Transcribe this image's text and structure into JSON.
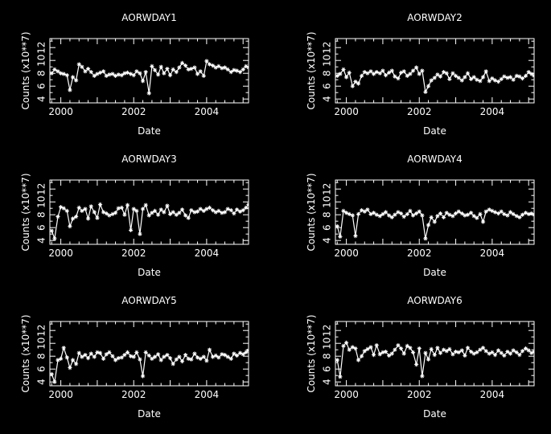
{
  "chart_data": [
    {
      "type": "line",
      "title": "AORWDAY1",
      "xlabel": "Date",
      "ylabel": "Counts (x10**7)",
      "xlim": [
        1999.7,
        2005.15
      ],
      "ylim": [
        3.4,
        13.4
      ],
      "xticks": [
        "2000",
        "2002",
        "2004"
      ],
      "yticks": [
        "4",
        "6",
        "8",
        "10",
        "12"
      ],
      "series": [
        {
          "x": [
            1999.75,
            1999.83,
            1999.92,
            2000.0,
            2000.08,
            2000.17,
            2000.25,
            2000.33,
            2000.42,
            2000.5,
            2000.58,
            2000.67,
            2000.75,
            2000.83,
            2000.92,
            2001.0,
            2001.08,
            2001.17,
            2001.25,
            2001.33,
            2001.42,
            2001.5,
            2001.58,
            2001.67,
            2001.75,
            2001.83,
            2001.92,
            2002.0,
            2002.08,
            2002.17,
            2002.25,
            2002.33,
            2002.42,
            2002.5,
            2002.58,
            2002.67,
            2002.75,
            2002.83,
            2002.92,
            2003.0,
            2003.08,
            2003.17,
            2003.25,
            2003.33,
            2003.42,
            2003.5,
            2003.58,
            2003.67,
            2003.75,
            2003.83,
            2003.92,
            2004.0,
            2004.08,
            2004.17,
            2004.25,
            2004.33,
            2004.42,
            2004.5,
            2004.58,
            2004.67,
            2004.75,
            2004.83,
            2004.92,
            2005.0,
            2005.08,
            2005.15
          ],
          "y": [
            8.0,
            8.6,
            8.3,
            8.0,
            7.9,
            7.7,
            5.4,
            7.4,
            6.9,
            9.4,
            9.0,
            8.3,
            8.7,
            8.2,
            7.6,
            7.9,
            8.1,
            8.3,
            7.6,
            7.8,
            7.9,
            7.6,
            7.8,
            7.7,
            8.0,
            8.1,
            7.9,
            7.7,
            8.3,
            8.0,
            6.8,
            8.2,
            4.9,
            9.1,
            8.5,
            7.8,
            9.0,
            8.0,
            8.7,
            7.7,
            8.6,
            8.2,
            8.9,
            9.6,
            9.2,
            8.6,
            8.7,
            8.9,
            7.9,
            8.3,
            7.6,
            9.9,
            9.4,
            9.2,
            8.9,
            9.1,
            8.8,
            8.9,
            8.6,
            8.2,
            8.5,
            8.4,
            8.2,
            8.6,
            9.1,
            8.9
          ]
        }
      ]
    },
    {
      "type": "line",
      "title": "AORWDAY2",
      "xlabel": "Date",
      "ylabel": "Counts (x10**7)",
      "xlim": [
        1999.7,
        2005.15
      ],
      "ylim": [
        3.4,
        13.4
      ],
      "xticks": [
        "2000",
        "2002",
        "2004"
      ],
      "yticks": [
        "4",
        "6",
        "8",
        "10",
        "12"
      ],
      "series": [
        {
          "x": [
            1999.75,
            1999.83,
            1999.92,
            2000.0,
            2000.08,
            2000.17,
            2000.25,
            2000.33,
            2000.42,
            2000.5,
            2000.58,
            2000.67,
            2000.75,
            2000.83,
            2000.92,
            2001.0,
            2001.08,
            2001.17,
            2001.25,
            2001.33,
            2001.42,
            2001.5,
            2001.58,
            2001.67,
            2001.75,
            2001.83,
            2001.92,
            2002.0,
            2002.08,
            2002.17,
            2002.25,
            2002.33,
            2002.42,
            2002.5,
            2002.58,
            2002.67,
            2002.75,
            2002.83,
            2002.92,
            2003.0,
            2003.08,
            2003.17,
            2003.25,
            2003.33,
            2003.42,
            2003.5,
            2003.58,
            2003.67,
            2003.75,
            2003.83,
            2003.92,
            2004.0,
            2004.08,
            2004.17,
            2004.25,
            2004.33,
            2004.42,
            2004.5,
            2004.58,
            2004.67,
            2004.75,
            2004.83,
            2004.92,
            2005.0,
            2005.08,
            2005.15
          ],
          "y": [
            7.6,
            7.9,
            8.6,
            7.4,
            8.1,
            6.0,
            6.7,
            6.4,
            7.6,
            8.2,
            8.0,
            8.3,
            7.9,
            8.2,
            8.0,
            8.4,
            7.7,
            8.1,
            8.4,
            7.5,
            7.2,
            8.1,
            8.3,
            7.6,
            7.9,
            8.4,
            8.9,
            7.9,
            8.4,
            5.1,
            6.0,
            6.9,
            7.3,
            7.8,
            7.5,
            8.2,
            8.0,
            7.1,
            8.0,
            7.6,
            7.3,
            6.9,
            7.4,
            8.0,
            7.1,
            7.4,
            7.0,
            6.8,
            7.4,
            8.3,
            6.8,
            7.2,
            6.9,
            6.7,
            7.1,
            7.5,
            7.3,
            7.4,
            7.0,
            7.6,
            7.5,
            7.2,
            7.6,
            8.2,
            7.9,
            7.6
          ]
        }
      ]
    },
    {
      "type": "line",
      "title": "AORWDAY3",
      "xlabel": "Date",
      "ylabel": "Counts (x10**7)",
      "xlim": [
        1999.7,
        2005.15
      ],
      "ylim": [
        3.4,
        13.4
      ],
      "xticks": [
        "2000",
        "2002",
        "2004"
      ],
      "yticks": [
        "4",
        "6",
        "8",
        "10",
        "12"
      ],
      "series": [
        {
          "x": [
            1999.75,
            1999.83,
            1999.92,
            2000.0,
            2000.08,
            2000.17,
            2000.25,
            2000.33,
            2000.42,
            2000.5,
            2000.58,
            2000.67,
            2000.75,
            2000.83,
            2000.92,
            2001.0,
            2001.08,
            2001.17,
            2001.25,
            2001.33,
            2001.42,
            2001.5,
            2001.58,
            2001.67,
            2001.75,
            2001.83,
            2001.92,
            2002.0,
            2002.08,
            2002.17,
            2002.25,
            2002.33,
            2002.42,
            2002.5,
            2002.58,
            2002.67,
            2002.75,
            2002.83,
            2002.92,
            2003.0,
            2003.08,
            2003.17,
            2003.25,
            2003.33,
            2003.42,
            2003.5,
            2003.58,
            2003.67,
            2003.75,
            2003.83,
            2003.92,
            2004.0,
            2004.08,
            2004.17,
            2004.25,
            2004.33,
            2004.42,
            2004.5,
            2004.58,
            2004.67,
            2004.75,
            2004.83,
            2004.92,
            2005.0,
            2005.08,
            2005.15
          ],
          "y": [
            5.5,
            4.3,
            7.7,
            9.2,
            9.0,
            8.6,
            6.2,
            7.4,
            7.7,
            9.1,
            8.6,
            8.9,
            7.4,
            9.3,
            8.4,
            7.5,
            9.6,
            8.4,
            8.2,
            7.9,
            8.1,
            8.3,
            9.0,
            9.1,
            8.0,
            9.5,
            5.6,
            8.9,
            8.6,
            5.0,
            8.9,
            9.5,
            7.9,
            8.3,
            8.6,
            8.0,
            8.8,
            8.4,
            9.4,
            8.1,
            8.4,
            8.0,
            8.3,
            8.8,
            7.9,
            7.5,
            8.7,
            8.4,
            8.5,
            8.9,
            8.6,
            8.9,
            9.1,
            8.7,
            8.4,
            8.6,
            8.3,
            8.4,
            8.9,
            8.7,
            8.2,
            8.8,
            8.5,
            8.7,
            9.1,
            9.6
          ]
        }
      ]
    },
    {
      "type": "line",
      "title": "AORWDAY4",
      "xlabel": "Date",
      "ylabel": "Counts (x10**7)",
      "xlim": [
        1999.7,
        2005.15
      ],
      "ylim": [
        3.4,
        13.4
      ],
      "xticks": [
        "2000",
        "2002",
        "2004"
      ],
      "yticks": [
        "4",
        "6",
        "8",
        "10",
        "12"
      ],
      "series": [
        {
          "x": [
            1999.75,
            1999.83,
            1999.92,
            2000.0,
            2000.08,
            2000.17,
            2000.25,
            2000.33,
            2000.42,
            2000.5,
            2000.58,
            2000.67,
            2000.75,
            2000.83,
            2000.92,
            2001.0,
            2001.08,
            2001.17,
            2001.25,
            2001.33,
            2001.42,
            2001.5,
            2001.58,
            2001.67,
            2001.75,
            2001.83,
            2001.92,
            2002.0,
            2002.08,
            2002.17,
            2002.25,
            2002.33,
            2002.42,
            2002.5,
            2002.58,
            2002.67,
            2002.75,
            2002.83,
            2002.92,
            2003.0,
            2003.08,
            2003.17,
            2003.25,
            2003.33,
            2003.42,
            2003.5,
            2003.58,
            2003.67,
            2003.75,
            2003.83,
            2003.92,
            2004.0,
            2004.08,
            2004.17,
            2004.25,
            2004.33,
            2004.42,
            2004.5,
            2004.58,
            2004.67,
            2004.75,
            2004.83,
            2004.92,
            2005.0,
            2005.08,
            2005.15
          ],
          "y": [
            6.2,
            4.6,
            8.6,
            8.3,
            8.1,
            7.9,
            4.7,
            8.1,
            8.7,
            8.5,
            8.8,
            8.1,
            8.3,
            8.0,
            7.8,
            8.1,
            8.4,
            7.9,
            7.6,
            8.0,
            8.4,
            8.2,
            7.7,
            8.1,
            8.6,
            7.9,
            8.2,
            8.5,
            7.9,
            4.3,
            6.4,
            7.6,
            6.9,
            7.8,
            8.2,
            7.6,
            8.3,
            8.0,
            7.8,
            8.2,
            8.5,
            8.2,
            7.9,
            8.0,
            8.3,
            7.8,
            7.5,
            8.1,
            6.9,
            8.5,
            8.8,
            8.6,
            8.4,
            8.2,
            8.5,
            8.1,
            7.9,
            8.4,
            8.1,
            7.8,
            7.6,
            8.0,
            8.3,
            8.1,
            8.2,
            8.0
          ]
        }
      ]
    },
    {
      "type": "line",
      "title": "AORWDAY5",
      "xlabel": "Date",
      "ylabel": "Counts (x10**7)",
      "xlim": [
        1999.7,
        2005.15
      ],
      "ylim": [
        3.4,
        13.4
      ],
      "xticks": [
        "2000",
        "2002",
        "2004"
      ],
      "yticks": [
        "4",
        "6",
        "8",
        "10",
        "12"
      ],
      "series": [
        {
          "x": [
            1999.75,
            1999.83,
            1999.92,
            2000.0,
            2000.08,
            2000.17,
            2000.25,
            2000.33,
            2000.42,
            2000.5,
            2000.58,
            2000.67,
            2000.75,
            2000.83,
            2000.92,
            2001.0,
            2001.08,
            2001.17,
            2001.25,
            2001.33,
            2001.42,
            2001.5,
            2001.58,
            2001.67,
            2001.75,
            2001.83,
            2001.92,
            2002.0,
            2002.08,
            2002.17,
            2002.25,
            2002.33,
            2002.42,
            2002.5,
            2002.58,
            2002.67,
            2002.75,
            2002.83,
            2002.92,
            2003.0,
            2003.08,
            2003.17,
            2003.25,
            2003.33,
            2003.42,
            2003.5,
            2003.58,
            2003.67,
            2003.75,
            2003.83,
            2003.92,
            2004.0,
            2004.08,
            2004.17,
            2004.25,
            2004.33,
            2004.42,
            2004.5,
            2004.58,
            2004.67,
            2004.75,
            2004.83,
            2004.92,
            2005.0,
            2005.08,
            2005.15
          ],
          "y": [
            5.2,
            4.0,
            7.4,
            7.6,
            9.3,
            7.8,
            6.2,
            7.4,
            6.8,
            8.5,
            7.9,
            8.2,
            7.7,
            8.4,
            7.9,
            8.6,
            8.5,
            7.6,
            8.3,
            8.6,
            8.0,
            7.4,
            7.7,
            7.8,
            8.2,
            8.6,
            8.0,
            7.9,
            8.6,
            7.5,
            4.9,
            8.6,
            8.1,
            7.6,
            7.9,
            8.3,
            7.4,
            7.9,
            8.2,
            7.7,
            6.8,
            7.5,
            7.9,
            7.2,
            8.2,
            7.6,
            7.5,
            8.4,
            7.8,
            7.6,
            7.9,
            7.3,
            9.0,
            7.9,
            8.1,
            7.8,
            8.3,
            8.2,
            7.9,
            7.6,
            8.4,
            8.1,
            8.5,
            8.3,
            8.6,
            8.9
          ]
        }
      ]
    },
    {
      "type": "line",
      "title": "AORWDAY6",
      "xlabel": "Date",
      "ylabel": "Counts (x10**7)",
      "xlim": [
        1999.7,
        2005.15
      ],
      "ylim": [
        3.4,
        13.4
      ],
      "xticks": [
        "2000",
        "2002",
        "2004"
      ],
      "yticks": [
        "4",
        "6",
        "8",
        "10",
        "12"
      ],
      "series": [
        {
          "x": [
            1999.75,
            1999.83,
            1999.92,
            2000.0,
            2000.08,
            2000.17,
            2000.25,
            2000.33,
            2000.42,
            2000.5,
            2000.58,
            2000.67,
            2000.75,
            2000.83,
            2000.92,
            2001.0,
            2001.08,
            2001.17,
            2001.25,
            2001.33,
            2001.42,
            2001.5,
            2001.58,
            2001.67,
            2001.75,
            2001.83,
            2001.92,
            2002.0,
            2002.08,
            2002.17,
            2002.25,
            2002.33,
            2002.42,
            2002.5,
            2002.58,
            2002.67,
            2002.75,
            2002.83,
            2002.92,
            2003.0,
            2003.08,
            2003.17,
            2003.25,
            2003.33,
            2003.42,
            2003.5,
            2003.58,
            2003.67,
            2003.75,
            2003.83,
            2003.92,
            2004.0,
            2004.08,
            2004.17,
            2004.25,
            2004.33,
            2004.42,
            2004.5,
            2004.58,
            2004.67,
            2004.75,
            2004.83,
            2004.92,
            2005.0,
            2005.08,
            2005.15
          ],
          "y": [
            7.4,
            4.8,
            9.6,
            10.1,
            9.0,
            9.4,
            9.2,
            7.4,
            8.0,
            8.8,
            9.1,
            9.4,
            8.2,
            9.7,
            8.3,
            8.6,
            8.7,
            8.1,
            8.4,
            9.0,
            9.7,
            9.2,
            8.4,
            9.6,
            9.3,
            8.6,
            6.7,
            9.2,
            4.9,
            8.5,
            7.5,
            9.1,
            8.2,
            9.3,
            8.5,
            9.0,
            8.8,
            9.1,
            8.3,
            8.7,
            8.6,
            8.9,
            8.1,
            9.3,
            8.7,
            8.4,
            8.6,
            9.0,
            9.3,
            8.8,
            8.4,
            8.6,
            8.2,
            8.9,
            8.5,
            8.1,
            8.7,
            8.4,
            8.9,
            8.6,
            8.2,
            8.8,
            9.2,
            8.9,
            8.5,
            8.7
          ]
        }
      ]
    }
  ]
}
